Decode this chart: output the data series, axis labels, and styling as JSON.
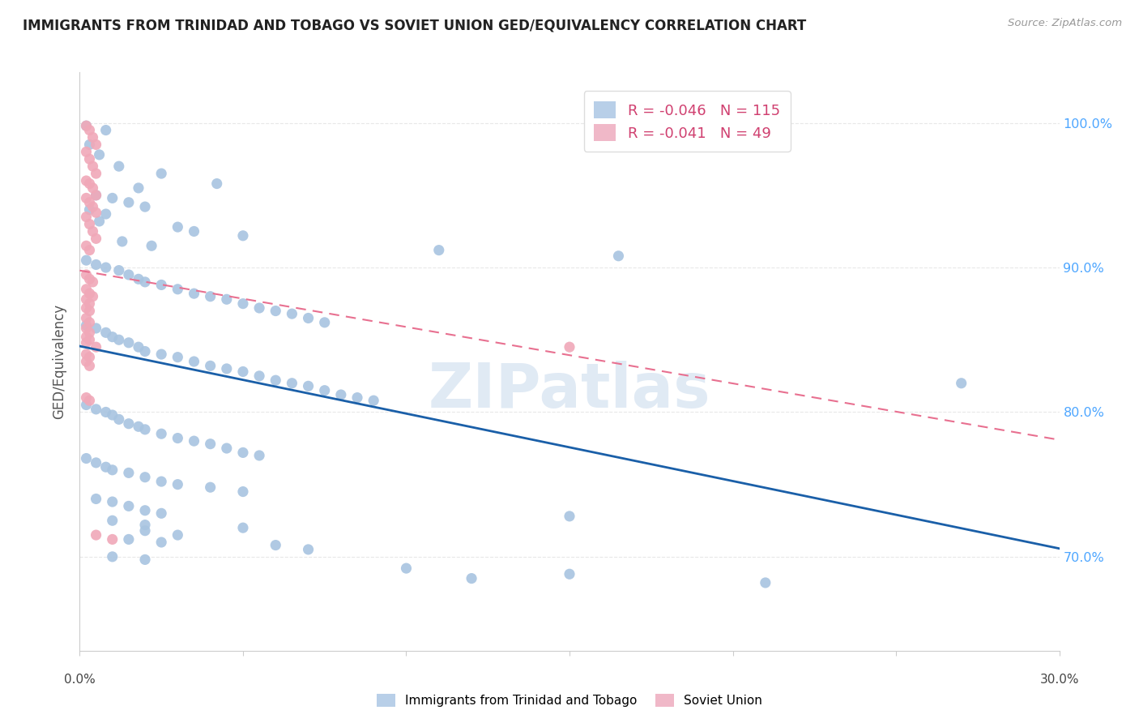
{
  "title": "IMMIGRANTS FROM TRINIDAD AND TOBAGO VS SOVIET UNION GED/EQUIVALENCY CORRELATION CHART",
  "source": "Source: ZipAtlas.com",
  "ylabel": "GED/Equivalency",
  "yticks": [
    0.7,
    0.8,
    0.9,
    1.0
  ],
  "ytick_labels": [
    "70.0%",
    "80.0%",
    "90.0%",
    "100.0%"
  ],
  "xmin": 0.0,
  "xmax": 0.3,
  "ymin": 0.635,
  "ymax": 1.035,
  "blue_R": -0.046,
  "blue_N": 115,
  "pink_R": -0.041,
  "pink_N": 49,
  "blue_dot_color": "#a8c4e0",
  "pink_dot_color": "#f0a8b8",
  "blue_line_color": "#1a5fa8",
  "pink_line_color": "#e87090",
  "blue_legend_color": "#b8cfe8",
  "pink_legend_color": "#f0b8c8",
  "watermark": "ZIPatlas",
  "watermark_color": "#ccdcee",
  "grid_color": "#e8e8e8",
  "background_color": "#ffffff",
  "blue_scatter_x": [
    0.002,
    0.008,
    0.003,
    0.006,
    0.012,
    0.025,
    0.042,
    0.018,
    0.005,
    0.01,
    0.015,
    0.02,
    0.003,
    0.008,
    0.006,
    0.03,
    0.035,
    0.05,
    0.013,
    0.022,
    0.11,
    0.165,
    0.002,
    0.005,
    0.008,
    0.012,
    0.015,
    0.018,
    0.02,
    0.025,
    0.03,
    0.035,
    0.04,
    0.045,
    0.05,
    0.055,
    0.06,
    0.065,
    0.07,
    0.075,
    0.002,
    0.005,
    0.008,
    0.01,
    0.012,
    0.015,
    0.018,
    0.02,
    0.025,
    0.03,
    0.035,
    0.04,
    0.045,
    0.05,
    0.055,
    0.06,
    0.065,
    0.07,
    0.075,
    0.08,
    0.085,
    0.09,
    0.002,
    0.005,
    0.008,
    0.01,
    0.012,
    0.015,
    0.018,
    0.02,
    0.025,
    0.03,
    0.035,
    0.04,
    0.045,
    0.05,
    0.055,
    0.002,
    0.005,
    0.008,
    0.01,
    0.015,
    0.02,
    0.025,
    0.03,
    0.04,
    0.05,
    0.005,
    0.01,
    0.015,
    0.02,
    0.025,
    0.15,
    0.01,
    0.02,
    0.05,
    0.02,
    0.03,
    0.015,
    0.025,
    0.06,
    0.07,
    0.01,
    0.02,
    0.1,
    0.15,
    0.12,
    0.21,
    0.27
  ],
  "blue_scatter_y": [
    0.998,
    0.995,
    0.985,
    0.978,
    0.97,
    0.965,
    0.958,
    0.955,
    0.95,
    0.948,
    0.945,
    0.942,
    0.94,
    0.937,
    0.932,
    0.928,
    0.925,
    0.922,
    0.918,
    0.915,
    0.912,
    0.908,
    0.905,
    0.902,
    0.9,
    0.898,
    0.895,
    0.892,
    0.89,
    0.888,
    0.885,
    0.882,
    0.88,
    0.878,
    0.875,
    0.872,
    0.87,
    0.868,
    0.865,
    0.862,
    0.86,
    0.858,
    0.855,
    0.852,
    0.85,
    0.848,
    0.845,
    0.842,
    0.84,
    0.838,
    0.835,
    0.832,
    0.83,
    0.828,
    0.825,
    0.822,
    0.82,
    0.818,
    0.815,
    0.812,
    0.81,
    0.808,
    0.805,
    0.802,
    0.8,
    0.798,
    0.795,
    0.792,
    0.79,
    0.788,
    0.785,
    0.782,
    0.78,
    0.778,
    0.775,
    0.772,
    0.77,
    0.768,
    0.765,
    0.762,
    0.76,
    0.758,
    0.755,
    0.752,
    0.75,
    0.748,
    0.745,
    0.74,
    0.738,
    0.735,
    0.732,
    0.73,
    0.728,
    0.725,
    0.722,
    0.72,
    0.718,
    0.715,
    0.712,
    0.71,
    0.708,
    0.705,
    0.7,
    0.698,
    0.692,
    0.688,
    0.685,
    0.682,
    0.82
  ],
  "pink_scatter_x": [
    0.002,
    0.003,
    0.004,
    0.005,
    0.002,
    0.003,
    0.004,
    0.005,
    0.002,
    0.003,
    0.004,
    0.005,
    0.002,
    0.003,
    0.004,
    0.005,
    0.002,
    0.003,
    0.004,
    0.005,
    0.002,
    0.003,
    0.002,
    0.003,
    0.004,
    0.002,
    0.003,
    0.004,
    0.002,
    0.003,
    0.002,
    0.003,
    0.002,
    0.003,
    0.002,
    0.003,
    0.002,
    0.003,
    0.002,
    0.005,
    0.002,
    0.003,
    0.002,
    0.003,
    0.005,
    0.01,
    0.15,
    0.002,
    0.003
  ],
  "pink_scatter_y": [
    0.998,
    0.995,
    0.99,
    0.985,
    0.98,
    0.975,
    0.97,
    0.965,
    0.96,
    0.958,
    0.955,
    0.95,
    0.948,
    0.945,
    0.942,
    0.938,
    0.935,
    0.93,
    0.925,
    0.92,
    0.915,
    0.912,
    0.895,
    0.892,
    0.89,
    0.885,
    0.882,
    0.88,
    0.878,
    0.875,
    0.872,
    0.87,
    0.865,
    0.862,
    0.858,
    0.855,
    0.852,
    0.85,
    0.848,
    0.845,
    0.84,
    0.838,
    0.835,
    0.832,
    0.715,
    0.712,
    0.845,
    0.81,
    0.808
  ]
}
